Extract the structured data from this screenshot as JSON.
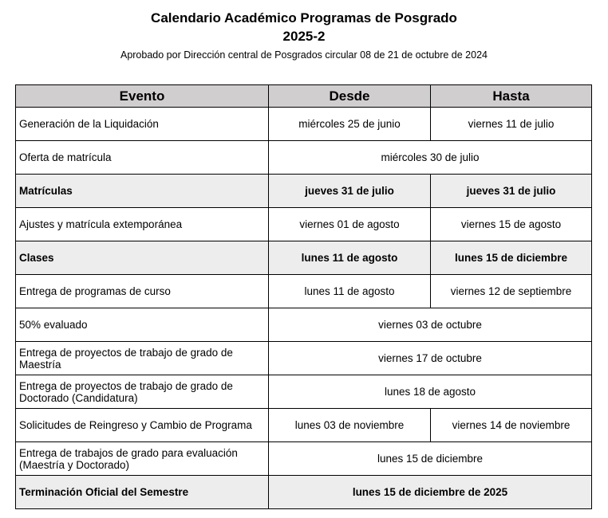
{
  "title": "Calendario Académico Programas de Posgrado",
  "period": "2025-2",
  "subtitle": "Aprobado por Dirección central de Posgrados circular 08 de 21 de octubre de 2024",
  "colors": {
    "header_bg": "#d0cece",
    "highlight_row_bg": "#ededed"
  },
  "table": {
    "headers": [
      "Evento",
      "Desde",
      "Hasta"
    ],
    "rows": [
      {
        "evento": "Generación de la Liquidación",
        "desde": "miércoles 25 de junio",
        "hasta": "viernes 11 de julio",
        "bold": false
      },
      {
        "evento": "Oferta de matrícula",
        "fecha": "miércoles 30 de julio",
        "bold": false
      },
      {
        "evento": "Matrículas",
        "desde": "jueves 31 de julio",
        "hasta": "jueves 31 de julio",
        "bold": true
      },
      {
        "evento": "Ajustes y matrícula extemporánea",
        "desde": "viernes 01 de agosto",
        "hasta": "viernes 15 de agosto",
        "bold": false
      },
      {
        "evento": "Clases",
        "desde": "lunes 11 de agosto",
        "hasta": "lunes 15 de diciembre",
        "bold": true
      },
      {
        "evento": "Entrega de programas de curso",
        "desde": "lunes 11 de agosto",
        "hasta": "viernes 12 de septiembre",
        "bold": false
      },
      {
        "evento": "50% evaluado",
        "fecha": "viernes 03 de octubre",
        "bold": false
      },
      {
        "evento": "Entrega de proyectos de trabajo de grado de Maestría",
        "fecha": "viernes 17 de octubre",
        "bold": false
      },
      {
        "evento": "Entrega de proyectos de trabajo de grado de Doctorado (Candidatura)",
        "fecha": "lunes 18 de agosto",
        "bold": false
      },
      {
        "evento": "Solicitudes de Reingreso y Cambio de Programa",
        "desde": "lunes 03 de noviembre",
        "hasta": "viernes 14 de noviembre",
        "bold": false
      },
      {
        "evento": "Entrega de trabajos de grado para evaluación (Maestría y Doctorado)",
        "fecha": "lunes 15 de diciembre",
        "bold": false
      },
      {
        "evento": "Terminación Oficial del Semestre",
        "fecha": "lunes 15 de diciembre de 2025",
        "bold": true
      }
    ]
  }
}
